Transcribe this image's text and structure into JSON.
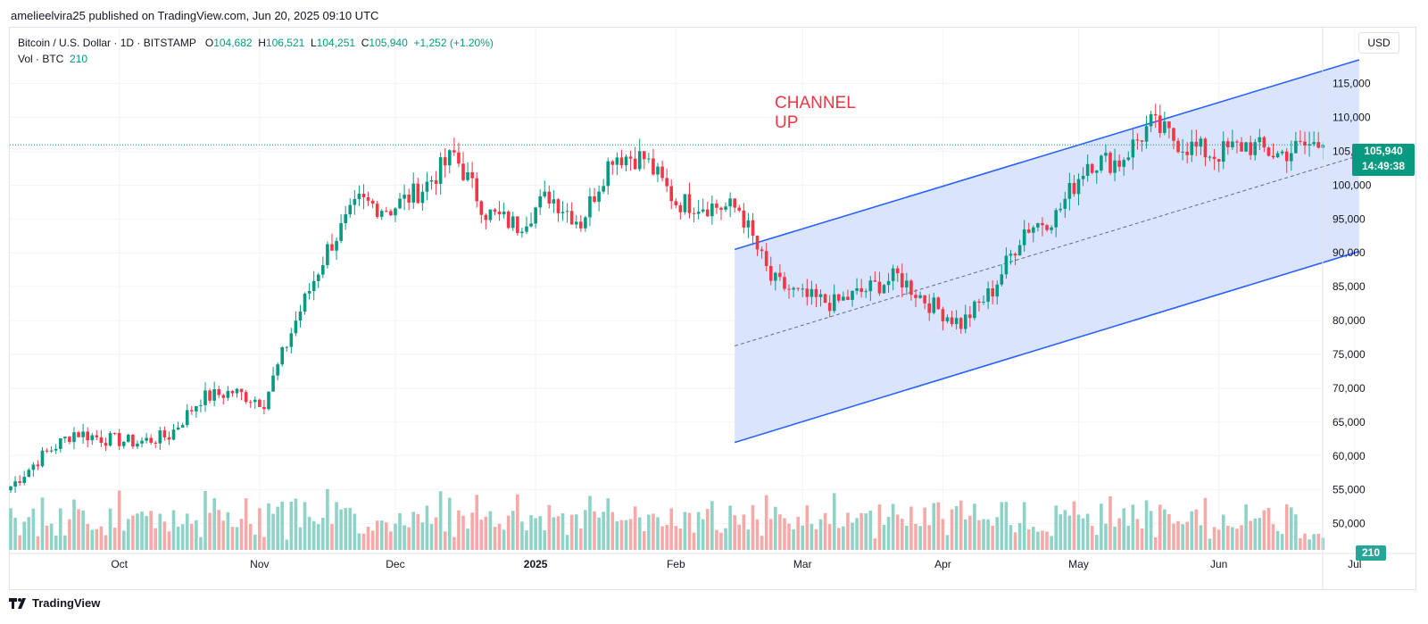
{
  "header": {
    "published": "amelieelvira25 published on TradingView.com, Jun 20, 2025 09:10 UTC"
  },
  "legend": {
    "symbol": "Bitcoin / U.S. Dollar · 1D · BITSTAMP",
    "o_label": "O",
    "o": "104,682",
    "h_label": "H",
    "h": "106,521",
    "l_label": "L",
    "l": "104,251",
    "c_label": "C",
    "c": "105,940",
    "change": "+1,252 (+1.20%)",
    "vol_label": "Vol · BTC",
    "vol": "210"
  },
  "currency": "USD",
  "last_price": {
    "price": "105,940",
    "countdown": "14:49:38"
  },
  "volume_tag": "210",
  "annotation": {
    "line1": "CHANNEL",
    "line2": "UP"
  },
  "footer": {
    "brand": "TradingView"
  },
  "colors": {
    "up": "#089981",
    "down": "#f23645",
    "channel_line": "#2962ff",
    "channel_fill": "#d4dffd",
    "annotation": "#f23645"
  },
  "chart_data": {
    "type": "candlestick",
    "symbol": "BTCUSD",
    "y_ticks": [
      115000,
      110000,
      105000,
      100000,
      95000,
      90000,
      85000,
      80000,
      75000,
      70000,
      65000,
      60000,
      55000,
      50000
    ],
    "y_tick_labels": [
      "115,000",
      "110,000",
      "105,000",
      "100,000",
      "95,000",
      "90,000",
      "85,000",
      "80,000",
      "75,000",
      "70,000",
      "65,000",
      "60,000",
      "55,000",
      "50,000"
    ],
    "ylim": [
      48500,
      118500
    ],
    "x_labels": [
      "Oct",
      "Nov",
      "Dec",
      "2025",
      "Feb",
      "Mar",
      "Apr",
      "May",
      "Jun",
      "Jul"
    ],
    "x_label_days": [
      24,
      55,
      85,
      116,
      147,
      175,
      206,
      236,
      267,
      297
    ],
    "weekly_close": [
      [
        "Sep 7",
        55500
      ],
      [
        "Sep 14",
        60000
      ],
      [
        "Sep 21",
        63500
      ],
      [
        "Sep 28",
        62500
      ],
      [
        "Oct 5",
        62000
      ],
      [
        "Oct 12",
        63000
      ],
      [
        "Oct 19",
        68500
      ],
      [
        "Oct 26",
        69500
      ],
      [
        "Nov 2",
        68000
      ],
      [
        "Nov 9",
        80000
      ],
      [
        "Nov 16",
        90500
      ],
      [
        "Nov 23",
        97500
      ],
      [
        "Nov 30",
        96500
      ],
      [
        "Dec 7",
        99500
      ],
      [
        "Dec 14",
        104500
      ],
      [
        "Dec 21",
        96000
      ],
      [
        "Dec 28",
        94000
      ],
      [
        "Jan 4",
        98500
      ],
      [
        "Jan 11",
        94500
      ],
      [
        "Jan 18",
        104500
      ],
      [
        "Jan 25",
        104000
      ],
      [
        "Feb 1",
        97500
      ],
      [
        "Feb 8",
        97000
      ],
      [
        "Feb 15",
        96500
      ],
      [
        "Feb 22",
        86000
      ],
      [
        "Mar 1",
        83500
      ],
      [
        "Mar 8",
        82500
      ],
      [
        "Mar 15",
        84500
      ],
      [
        "Mar 22",
        86500
      ],
      [
        "Mar 29",
        82500
      ],
      [
        "Apr 5",
        79500
      ],
      [
        "Apr 12",
        84500
      ],
      [
        "Apr 19",
        93500
      ],
      [
        "Apr 26",
        95500
      ],
      [
        "May 3",
        103500
      ],
      [
        "May 10",
        103500
      ],
      [
        "May 17",
        109000
      ],
      [
        "May 24",
        106000
      ],
      [
        "May 31",
        104500
      ],
      [
        "Jun 7",
        106000
      ],
      [
        "Jun 14",
        104500
      ],
      [
        "Jun 20",
        105940
      ]
    ],
    "channel": {
      "start_day": 160,
      "end_day": 298,
      "upper_start": 90500,
      "upper_end": 118500,
      "lower_start": 62000,
      "lower_end": 90200
    }
  }
}
